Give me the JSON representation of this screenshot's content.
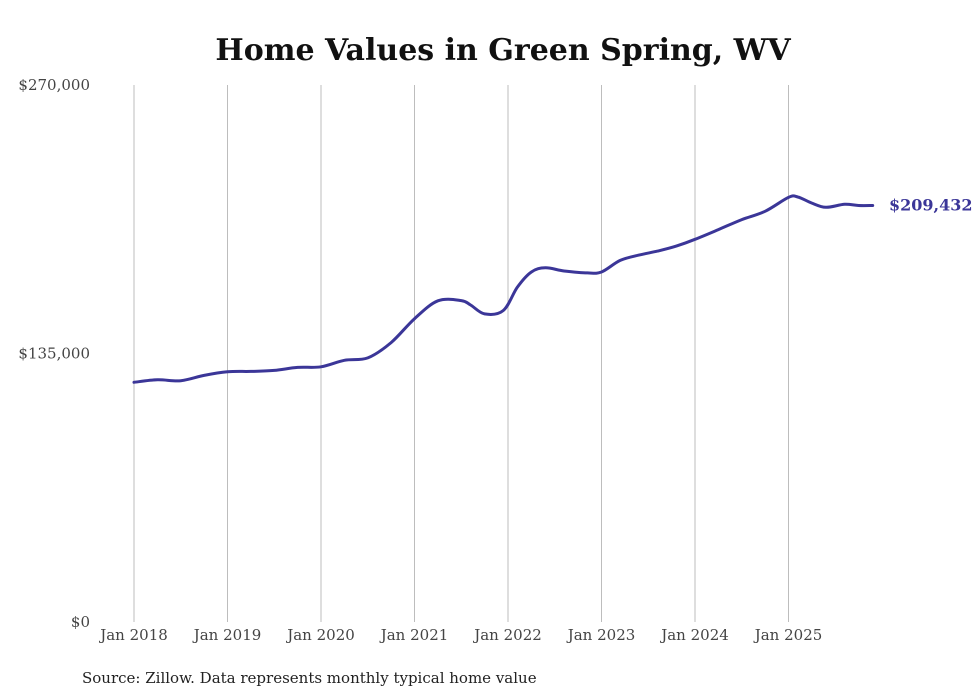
{
  "chart_data": {
    "type": "line",
    "title": "Home Values in Green Spring, WV",
    "xlabel": "",
    "ylabel": "",
    "ylim": [
      0,
      270000
    ],
    "y_ticks": [
      {
        "value": 0,
        "label": "$0"
      },
      {
        "value": 135000,
        "label": "$135,000"
      },
      {
        "value": 270000,
        "label": "$270,000"
      }
    ],
    "x_range": [
      2018.0,
      2026.0
    ],
    "x_ticks": [
      {
        "value": 2018,
        "label": "Jan 2018"
      },
      {
        "value": 2019,
        "label": "Jan 2019"
      },
      {
        "value": 2020,
        "label": "Jan 2020"
      },
      {
        "value": 2021,
        "label": "Jan 2021"
      },
      {
        "value": 2022,
        "label": "Jan 2022"
      },
      {
        "value": 2023,
        "label": "Jan 2023"
      },
      {
        "value": 2024,
        "label": "Jan 2024"
      },
      {
        "value": 2025,
        "label": "Jan 2025"
      }
    ],
    "grid": "vertical",
    "series": [
      {
        "name": "Typical home value",
        "color": "#3b3698",
        "x": [
          2018.0,
          2018.25,
          2018.5,
          2018.75,
          2019.0,
          2019.25,
          2019.5,
          2019.75,
          2020.0,
          2020.25,
          2020.5,
          2020.75,
          2021.0,
          2021.25,
          2021.5,
          2021.6,
          2021.75,
          2021.95,
          2022.1,
          2022.25,
          2022.4,
          2022.6,
          2022.85,
          2023.0,
          2023.2,
          2023.4,
          2023.6,
          2023.8,
          2024.0,
          2024.25,
          2024.5,
          2024.75,
          2025.0,
          2025.1,
          2025.25,
          2025.4,
          2025.6,
          2025.75,
          2025.9
        ],
        "values": [
          120500,
          121800,
          121300,
          124000,
          125800,
          126000,
          126500,
          128000,
          128300,
          131600,
          132800,
          140500,
          152500,
          161500,
          161600,
          159400,
          154900,
          156600,
          168300,
          176000,
          178100,
          176500,
          175500,
          176000,
          181800,
          184500,
          186500,
          189000,
          192400,
          197300,
          202300,
          206500,
          213500,
          213700,
          210600,
          208500,
          210000,
          209432,
          209432
        ]
      }
    ],
    "end_label": "$209,432"
  },
  "source_note": "Source: Zillow. Data represents monthly typical home value"
}
